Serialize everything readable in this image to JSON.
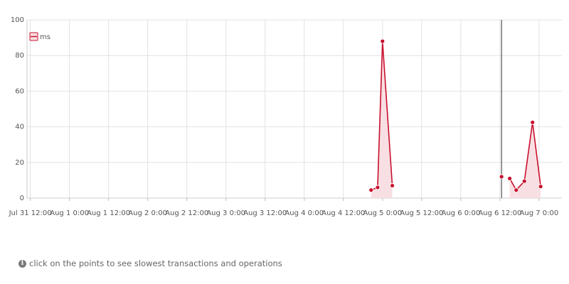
{
  "chart_data": {
    "type": "line",
    "ylim": [
      0,
      100
    ],
    "yticks": [
      0,
      20,
      40,
      60,
      80,
      100
    ],
    "xlim": [
      "2015-07-31 11:00",
      "2015-08-07 07:00"
    ],
    "xticks": [
      {
        "t": "2015-07-31 12:00",
        "label": "Jul 31 12:00"
      },
      {
        "t": "2015-08-01 00:00",
        "label": "Aug 1 0:00"
      },
      {
        "t": "2015-08-01 12:00",
        "label": "Aug 1 12:00"
      },
      {
        "t": "2015-08-02 00:00",
        "label": "Aug 2 0:00"
      },
      {
        "t": "2015-08-02 12:00",
        "label": "Aug 2 12:00"
      },
      {
        "t": "2015-08-03 00:00",
        "label": "Aug 3 0:00"
      },
      {
        "t": "2015-08-03 12:00",
        "label": "Aug 3 12:00"
      },
      {
        "t": "2015-08-04 00:00",
        "label": "Aug 4 0:00"
      },
      {
        "t": "2015-08-04 12:00",
        "label": "Aug 4 12:00"
      },
      {
        "t": "2015-08-05 00:00",
        "label": "Aug 5 0:00"
      },
      {
        "t": "2015-08-05 12:00",
        "label": "Aug 5 12:00"
      },
      {
        "t": "2015-08-06 00:00",
        "label": "Aug 6 0:00"
      },
      {
        "t": "2015-08-06 12:00",
        "label": "Aug 6 12:00"
      },
      {
        "t": "2015-08-07 00:00",
        "label": "Aug 7 0:00"
      }
    ],
    "grid": true,
    "legend_position": "top-left",
    "series": [
      {
        "name": "ms",
        "color": "#c8102e",
        "fill": "#f8dfe3",
        "segments": [
          [
            {
              "t": "2015-08-04 20:30",
              "y": 4.5
            },
            {
              "t": "2015-08-04 22:30",
              "y": 6
            },
            {
              "t": "2015-08-05 00:00",
              "y": 88
            },
            {
              "t": "2015-08-05 03:00",
              "y": 7
            }
          ],
          [
            {
              "t": "2015-08-06 12:30",
              "y": 12
            }
          ],
          [
            {
              "t": "2015-08-06 15:00",
              "y": 11
            },
            {
              "t": "2015-08-06 17:00",
              "y": 4.5
            },
            {
              "t": "2015-08-06 19:30",
              "y": 9.5
            },
            {
              "t": "2015-08-06 22:00",
              "y": 42.5
            },
            {
              "t": "2015-08-07 00:30",
              "y": 6.5
            }
          ]
        ]
      }
    ],
    "marker_line": {
      "t": "2015-08-06 12:30",
      "color": "#333333"
    }
  },
  "hint": {
    "text": "click on the points to see slowest transactions and operations",
    "icon": "info-icon"
  }
}
